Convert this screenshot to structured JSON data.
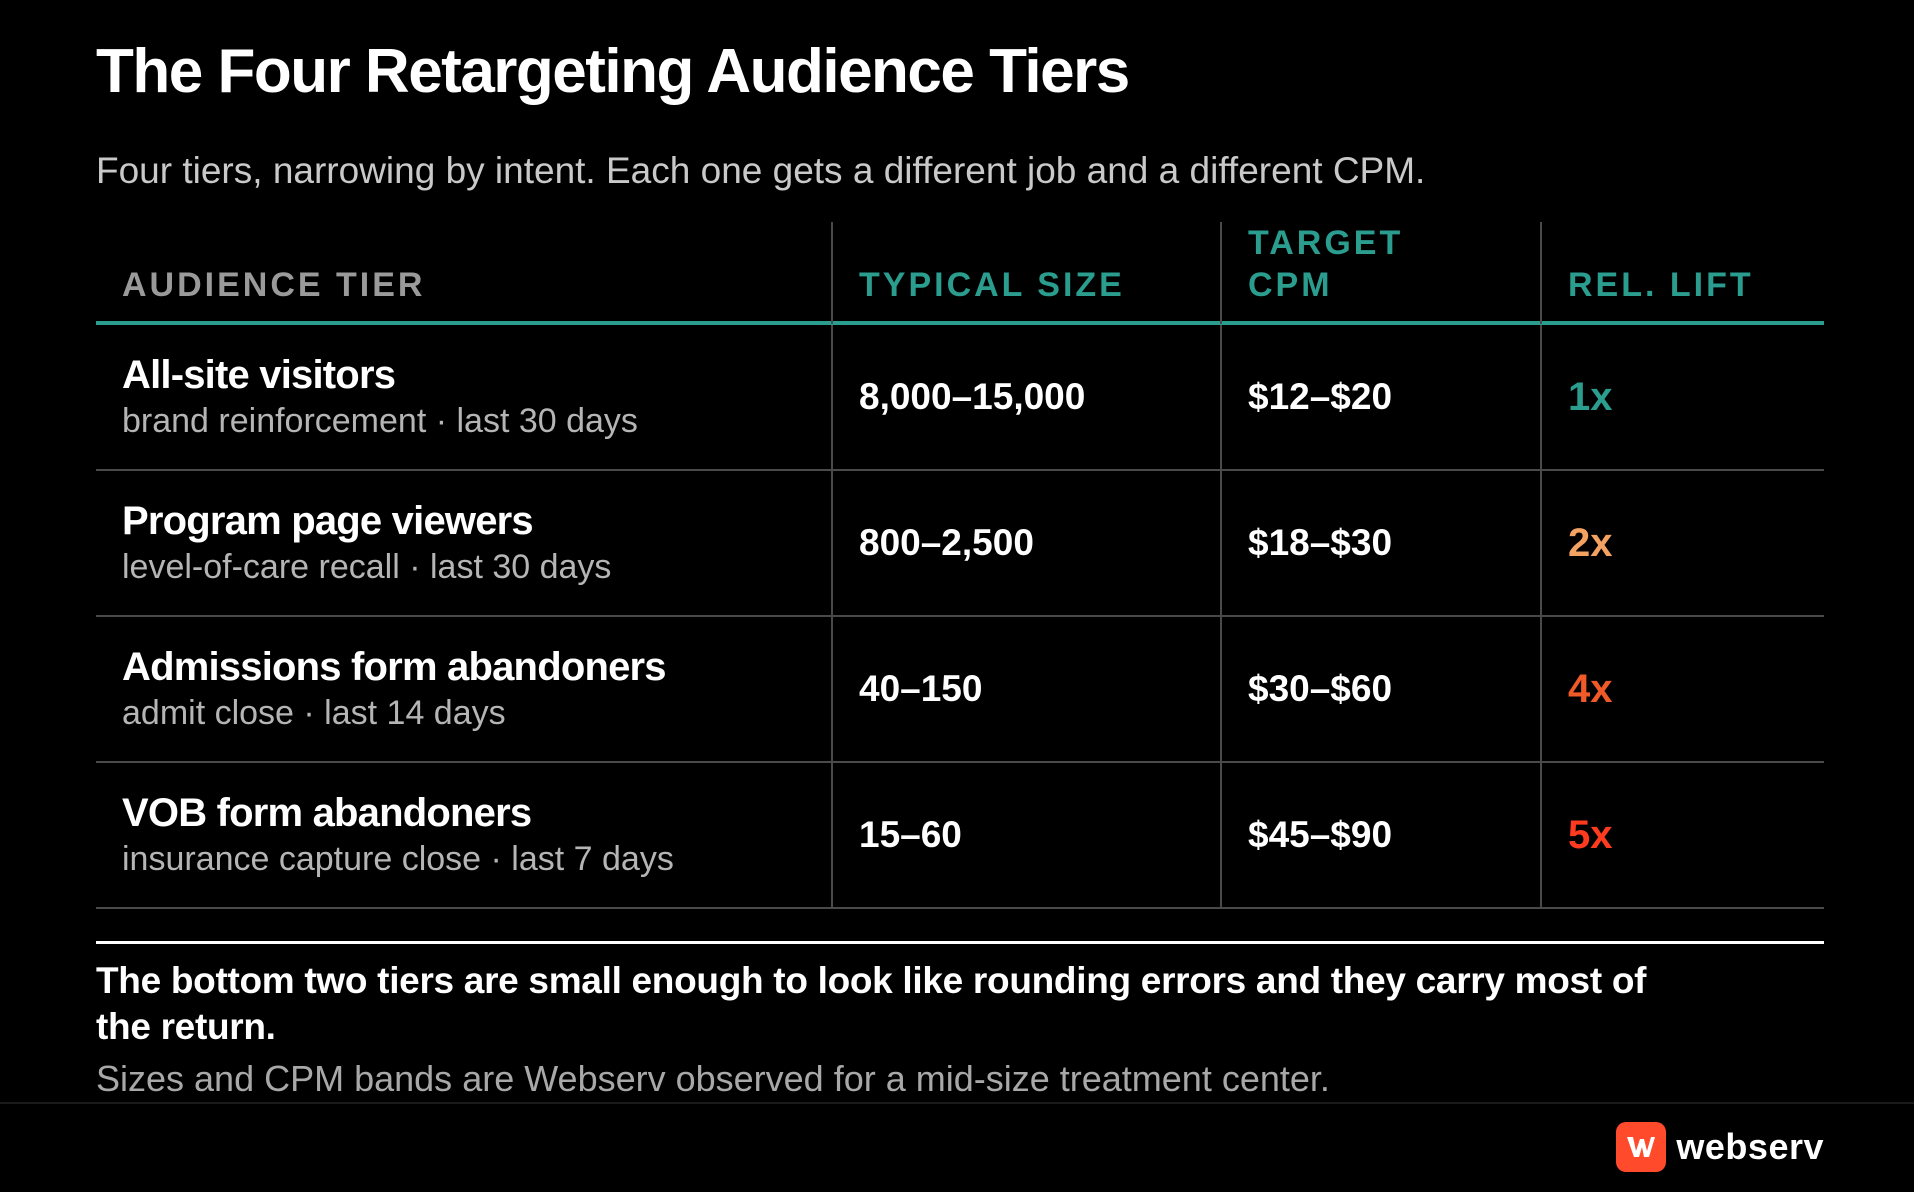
{
  "title": "The Four Retargeting Audience Tiers",
  "subtitle": "Four tiers, narrowing by intent. Each one gets a different job and a different CPM.",
  "table": {
    "headers": {
      "tier": "AUDIENCE TIER",
      "size": "TYPICAL SIZE",
      "cpm_line1": "TARGET",
      "cpm_line2": "CPM",
      "lift": "REL. LIFT"
    },
    "rows": [
      {
        "name": "All-site visitors",
        "desc": "brand reinforcement · last 30 days",
        "size": "8,000–15,000",
        "cpm": "$12–$20",
        "lift": "1x",
        "lift_color": "#2a9d8f"
      },
      {
        "name": "Program page viewers",
        "desc": "level-of-care recall · last 30 days",
        "size": "800–2,500",
        "cpm": "$18–$30",
        "lift": "2x",
        "lift_color": "#f4a261"
      },
      {
        "name": "Admissions form abandoners",
        "desc": "admit close · last 14 days",
        "size": "40–150",
        "cpm": "$30–$60",
        "lift": "4x",
        "lift_color": "#f05a28"
      },
      {
        "name": "VOB form abandoners",
        "desc": "insurance capture close · last 7 days",
        "size": "15–60",
        "cpm": "$45–$90",
        "lift": "5x",
        "lift_color": "#ff3b1f"
      }
    ]
  },
  "takeaway": "The bottom two tiers are small enough to look like rounding errors and they carry most of the return.",
  "footnote": "Sizes and CPM bands are Webserv observed for a mid-size treatment center.",
  "brand": {
    "name": "webserv",
    "icon": "webserv-logo-icon",
    "color": "#ff4b2b"
  },
  "colors": {
    "accent": "#2a9d8f",
    "background": "#000000"
  }
}
